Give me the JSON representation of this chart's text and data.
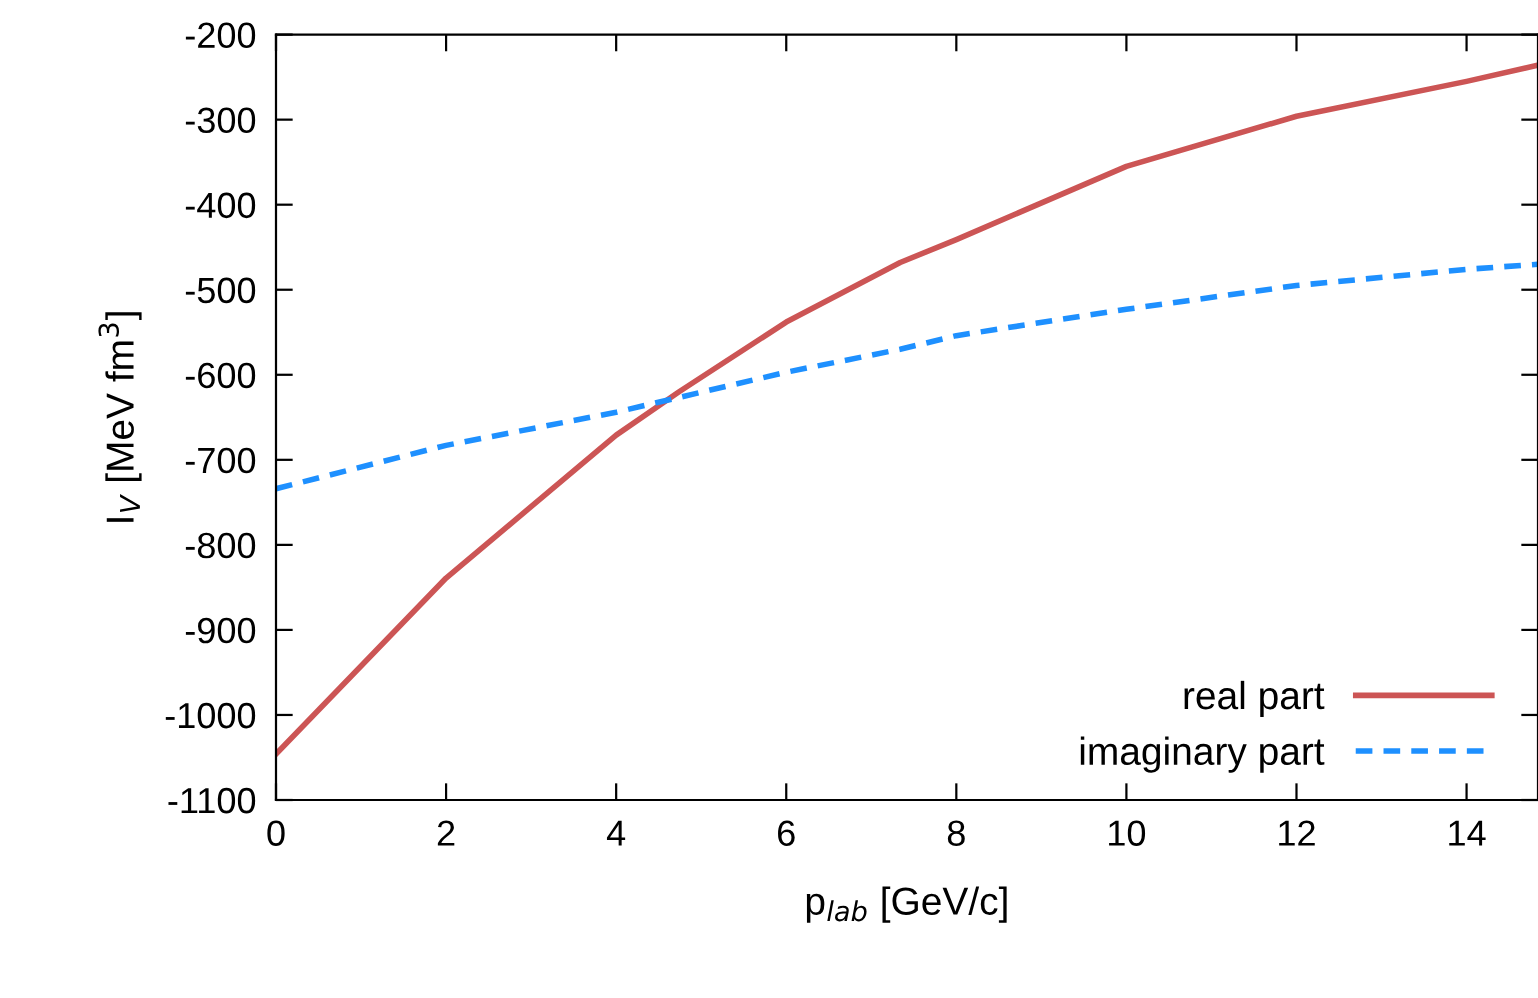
{
  "chart_data": {
    "type": "line",
    "xlabel": "p$_{lab}$ [GeV/c]",
    "ylabel": "I$_{V}$ [MeV fm$^{3}$]",
    "xlim": [
      0,
      14.84
    ],
    "xticks": [
      0,
      2,
      4,
      6,
      8,
      10,
      12,
      14
    ],
    "ylim": [
      -1100,
      -200
    ],
    "yticks": [
      -1100,
      -1000,
      -900,
      -800,
      -700,
      -600,
      -500,
      -400,
      -300,
      -200
    ],
    "grid": false,
    "legend": "bottom right",
    "series": [
      {
        "name": "real part",
        "color": "#cc5555",
        "line_style": "solid",
        "x": [
          0,
          2,
          4,
          4.74,
          6,
          7.34,
          8,
          10,
          12,
          14,
          14.84
        ],
        "values": [
          -1046,
          -839,
          -671,
          -620,
          -538,
          -468,
          -441,
          -355,
          -296,
          -255,
          -236
        ]
      },
      {
        "name": "imaginary part",
        "color": "#1e90ff",
        "line_style": "dashed",
        "x": [
          0,
          2,
          4,
          6,
          7.34,
          8,
          10,
          12,
          14,
          14.84
        ],
        "values": [
          -734,
          -683,
          -644,
          -597,
          -570,
          -554,
          -523,
          -495,
          -476,
          -470
        ]
      }
    ]
  }
}
